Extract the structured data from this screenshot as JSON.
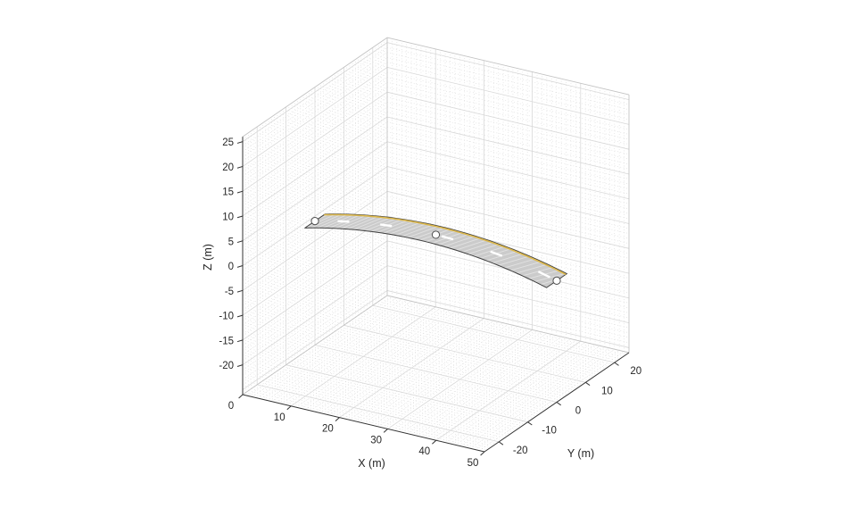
{
  "figure": {
    "background": "#ffffff",
    "kind": "3D road scenario plot"
  },
  "chart_data": {
    "type": "scatter",
    "subtype": "3d-road-surface",
    "title": "",
    "axes": {
      "x": {
        "label": "X (m)",
        "range": [
          0,
          50
        ],
        "ticks": [
          0,
          10,
          20,
          30,
          40,
          50
        ],
        "major_step": 10,
        "minor_step": 1
      },
      "y": {
        "label": "Y (m)",
        "range": [
          -25,
          25
        ],
        "ticks": [
          -20,
          -10,
          0,
          10,
          20
        ],
        "major_step": 10,
        "minor_step": 1
      },
      "z": {
        "label": "Z (m)",
        "range": [
          -26,
          26
        ],
        "ticks": [
          25,
          20,
          15,
          10,
          5,
          0,
          -5,
          -10,
          -15,
          -20
        ],
        "major_step": 5,
        "minor_step": 1
      }
    },
    "grid": {
      "major_style": "solid",
      "minor_style": "dotted",
      "walls": [
        "left (x=0)",
        "right (y=max)",
        "floor (z=min)"
      ]
    },
    "road": {
      "centerline_waypoints": [
        [
          0,
          0,
          -1
        ],
        [
          25,
          0,
          2
        ],
        [
          50,
          0,
          -1.5
        ]
      ],
      "width_m": 7,
      "center_dash_marking": {
        "dash_starts_m": [
          4.7,
          13.5,
          26.2,
          36.3,
          46.2
        ],
        "dash_length_m": 2.4
      },
      "edge_marking_offset_m": 0.35
    },
    "waypoint_markers": [
      [
        0,
        0,
        -1
      ],
      [
        25,
        0,
        2
      ],
      [
        50,
        0,
        -1.5
      ]
    ],
    "colors": {
      "road_fill": "#cbcbcb",
      "road_outline": "#3f3f3f",
      "road_hatch": "#ffffff",
      "edge_line_yellow": "#ddb84b",
      "center_dash_white": "#ffffff",
      "marker_fill": "#ffffff",
      "marker_edge": "#4d4d4d",
      "axis": "#333333",
      "grid_major": "#d9d9d9",
      "grid_minor": "#d0d0d0",
      "box_edge": "#c3c3c3",
      "text": "#262626",
      "background": "#ffffff"
    }
  }
}
